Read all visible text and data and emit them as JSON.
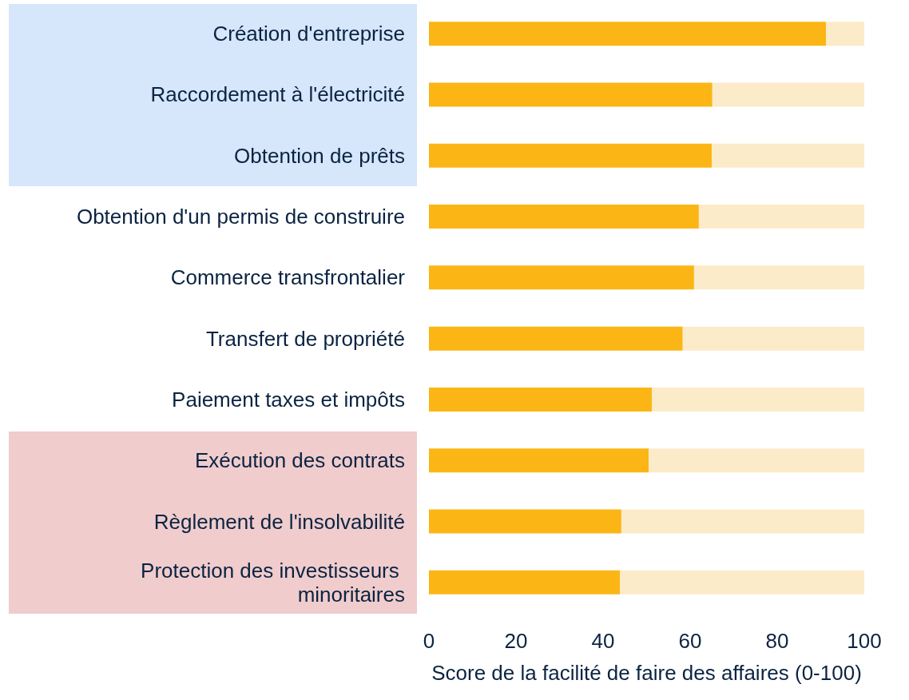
{
  "chart_data": {
    "type": "bar",
    "orientation": "horizontal",
    "stacked": true,
    "xlabel": "Score de la facilité de faire des affaires (0-100)",
    "categories": [
      "Création d'entreprise",
      "Raccordement à l'électricité",
      "Obtention de prêts",
      "Obtention d'un permis de construire",
      "Commerce transfrontalier",
      "Transfert de propriété",
      "Paiement taxes et impôts",
      "Exécution des contrats",
      "Règlement de l'insolvabilité",
      "Protection des investisseurs minoritaires"
    ],
    "series": [
      {
        "color": "#fbb615",
        "values": [
          91.2,
          65.1,
          65.0,
          62.0,
          60.9,
          58.3,
          51.2,
          50.5,
          44.2,
          43.9
        ]
      },
      {
        "color": "#fcebc9",
        "values": [
          8.8,
          34.9,
          35.0,
          38.0,
          39.1,
          41.7,
          48.8,
          49.5,
          55.8,
          56.1
        ]
      }
    ],
    "xlim": [
      0,
      100
    ],
    "xticks": [
      0,
      20,
      40,
      60,
      80,
      100
    ],
    "grid": false
  }
}
